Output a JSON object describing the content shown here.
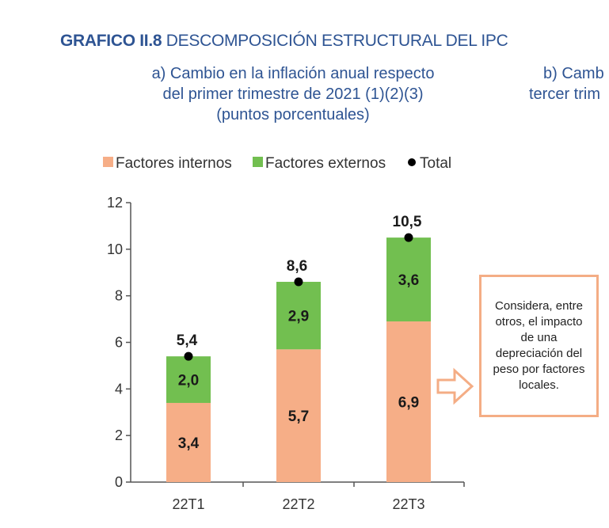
{
  "figure": {
    "number": "GRAFICO II.8",
    "title": "DESCOMPOSICIÓN ESTRUCTURAL DEL IPC"
  },
  "panel_a": {
    "subtitle_lines": [
      "a) Cambio en la inflación anual respecto",
      "del primer trimestre de 2021 (1)(2)(3)",
      "(puntos porcentuales)"
    ]
  },
  "panel_b": {
    "subtitle_lines": [
      "b) Camb",
      "tercer trim"
    ]
  },
  "callout": {
    "text": "Considera, entre otros, el impacto de una depreciación del peso por factores locales."
  },
  "colors": {
    "internos": "#f6ae87",
    "externos": "#72bf50",
    "total": "#000000",
    "title": "#2e5493",
    "callout_border": "#f4ad85"
  },
  "chart_data": {
    "type": "bar",
    "stacked": true,
    "categories": [
      "22T1",
      "22T2",
      "22T3"
    ],
    "series": [
      {
        "name": "Factores internos",
        "values": [
          3.4,
          5.7,
          6.9
        ],
        "labels": [
          "3,4",
          "5,7",
          "6,9"
        ]
      },
      {
        "name": "Factores externos",
        "values": [
          2.0,
          2.9,
          3.6
        ],
        "labels": [
          "2,0",
          "2,9",
          "3,6"
        ]
      }
    ],
    "total": {
      "name": "Total",
      "values": [
        5.4,
        8.6,
        10.5
      ],
      "labels": [
        "5,4",
        "8,6",
        "10,5"
      ]
    },
    "ylim": [
      0,
      12
    ],
    "yticks": [
      0,
      2,
      4,
      6,
      8,
      10,
      12
    ],
    "legend_position": "top",
    "grid": false
  }
}
